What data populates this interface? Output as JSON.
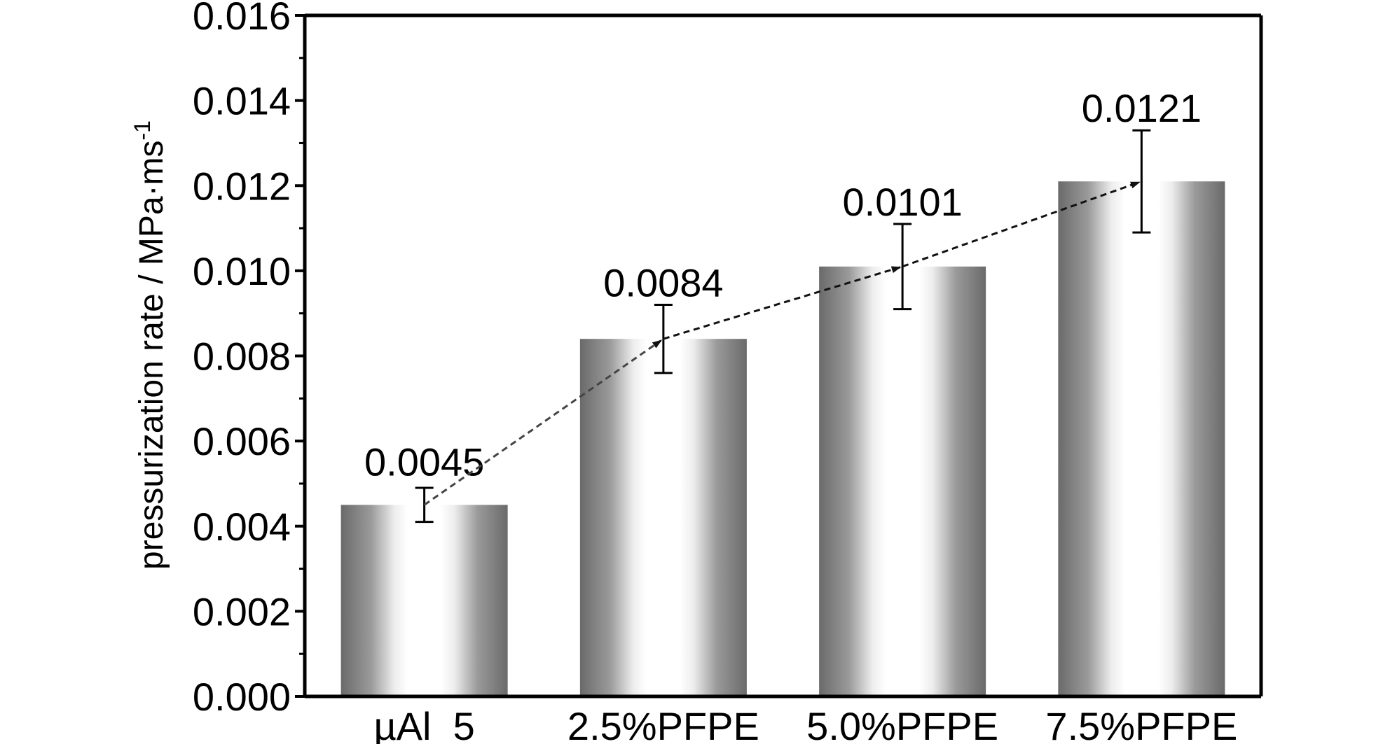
{
  "chart_data": {
    "type": "bar",
    "categories": [
      "µAl_5",
      "2.5%PFPE",
      "5.0%PFPE",
      "7.5%PFPE"
    ],
    "values": [
      0.0045,
      0.0084,
      0.0101,
      0.0121
    ],
    "value_labels": [
      "0.0045",
      "0.0084",
      "0.0101",
      "0.0121"
    ],
    "error": [
      0.0004,
      0.0008,
      0.001,
      0.0012
    ],
    "ylabel": "pressurization rate / MPa·ms",
    "ylabel_superscript": "-1",
    "xlabel": "",
    "title": "",
    "ylim": [
      0,
      0.016
    ],
    "yticks": [
      "0.000",
      "0.002",
      "0.004",
      "0.006",
      "0.008",
      "0.010",
      "0.012",
      "0.014",
      "0.016"
    ],
    "trend_arrow": true,
    "grid": false,
    "legend": "none"
  },
  "colors": {
    "bar_dark": "#6e6e6e",
    "bar_light": "#ffffff",
    "axis": "#000000",
    "trend_line": "#000000"
  }
}
